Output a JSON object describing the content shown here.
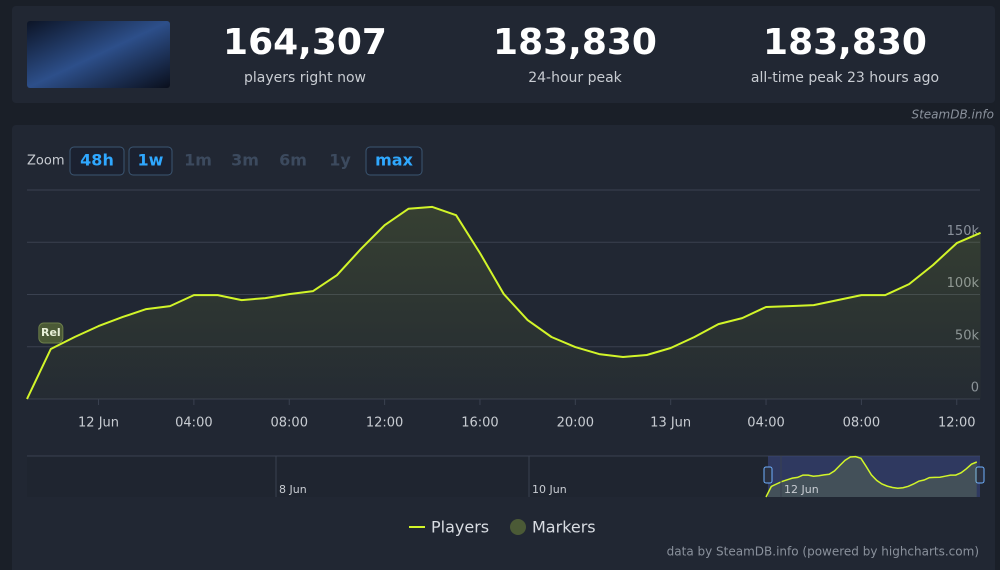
{
  "header": {
    "stats": [
      {
        "value": "164,307",
        "label": "players right now"
      },
      {
        "value": "183,830",
        "label": "24-hour peak"
      },
      {
        "value": "183,830",
        "label": "all-time peak 23 hours ago"
      }
    ],
    "source": "SteamDB.info"
  },
  "zoom": {
    "label": "Zoom",
    "options": [
      {
        "text": "48h",
        "enabled": true
      },
      {
        "text": "1w",
        "enabled": true
      },
      {
        "text": "1m",
        "enabled": false
      },
      {
        "text": "3m",
        "enabled": false
      },
      {
        "text": "6m",
        "enabled": false
      },
      {
        "text": "1y",
        "enabled": false
      },
      {
        "text": "max",
        "enabled": true
      }
    ]
  },
  "chart_data": {
    "type": "line",
    "categories": [
      "11 Jun 21:00",
      "11 Jun 22:00",
      "11 Jun 23:00",
      "12 Jun 00:00",
      "12 Jun 01:00",
      "12 Jun 02:00",
      "12 Jun 03:00",
      "12 Jun 04:00",
      "12 Jun 05:00",
      "12 Jun 06:00",
      "12 Jun 07:00",
      "12 Jun 08:00",
      "12 Jun 09:00",
      "12 Jun 10:00",
      "12 Jun 11:00",
      "12 Jun 12:00",
      "12 Jun 13:00",
      "12 Jun 14:00",
      "12 Jun 15:00",
      "12 Jun 16:00",
      "12 Jun 17:00",
      "12 Jun 18:00",
      "12 Jun 19:00",
      "12 Jun 20:00",
      "12 Jun 21:00",
      "12 Jun 22:00",
      "12 Jun 23:00",
      "13 Jun 00:00",
      "13 Jun 01:00",
      "13 Jun 02:00",
      "13 Jun 03:00",
      "13 Jun 04:00",
      "13 Jun 05:00",
      "13 Jun 06:00",
      "13 Jun 07:00",
      "13 Jun 08:00",
      "13 Jun 09:00",
      "13 Jun 10:00",
      "13 Jun 11:00",
      "13 Jun 12:00",
      "13 Jun 13:00"
    ],
    "series": [
      {
        "name": "Players",
        "color": "#d2f529",
        "values": [
          0,
          47800,
          59300,
          69800,
          78400,
          86000,
          88900,
          99400,
          99400,
          94600,
          96600,
          100400,
          103300,
          118500,
          143400,
          166300,
          182000,
          183830,
          175900,
          139600,
          100400,
          75500,
          59300,
          49700,
          43000,
          40200,
          42100,
          48800,
          59300,
          71700,
          77400,
          88000,
          88900,
          89900,
          94600,
          99400,
          99400,
          110000,
          128100,
          149200,
          159000
        ]
      }
    ],
    "markers": {
      "name": "Markers",
      "color": "#4b5a36",
      "items": [
        {
          "text": "Rel",
          "x": "11 Jun 22:00"
        }
      ]
    },
    "ylim": [
      0,
      200000
    ],
    "yticks": [
      {
        "value": 0,
        "label": "0"
      },
      {
        "value": 50000,
        "label": "50k"
      },
      {
        "value": 100000,
        "label": "100k"
      },
      {
        "value": 150000,
        "label": "150k"
      }
    ],
    "xticks": [
      {
        "value": "12 Jun 00:00",
        "label": "12 Jun"
      },
      {
        "value": "12 Jun 04:00",
        "label": "04:00"
      },
      {
        "value": "12 Jun 08:00",
        "label": "08:00"
      },
      {
        "value": "12 Jun 12:00",
        "label": "12:00"
      },
      {
        "value": "12 Jun 16:00",
        "label": "16:00"
      },
      {
        "value": "12 Jun 20:00",
        "label": "20:00"
      },
      {
        "value": "13 Jun 00:00",
        "label": "13 Jun"
      },
      {
        "value": "13 Jun 04:00",
        "label": "04:00"
      },
      {
        "value": "13 Jun 08:00",
        "label": "08:00"
      },
      {
        "value": "13 Jun 12:00",
        "label": "12:00"
      }
    ],
    "grid": true,
    "navigator": {
      "labels": [
        "8 Jun",
        "10 Jun",
        "12 Jun"
      ]
    },
    "credits": "data by SteamDB.info (powered by highcharts.com)"
  }
}
